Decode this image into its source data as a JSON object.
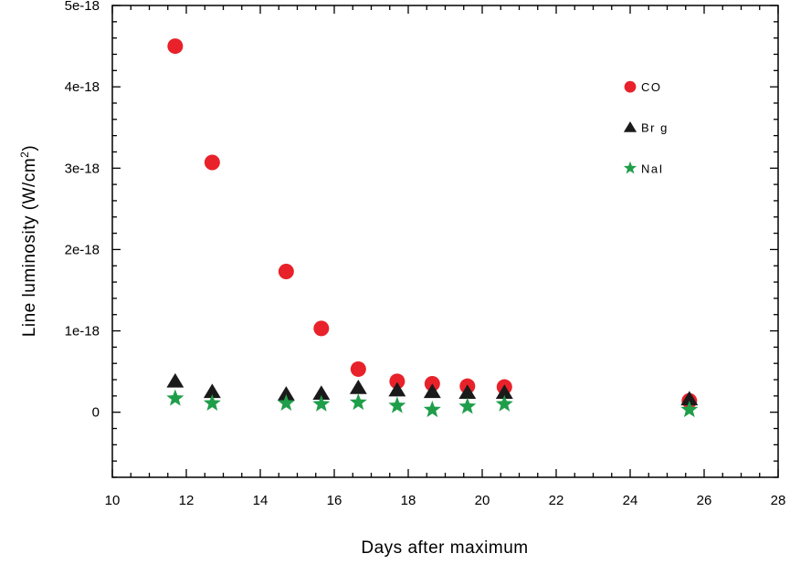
{
  "chart_data": {
    "type": "scatter",
    "xlabel": "Days after maximum",
    "ylabel": {
      "main": "Line luminosity (W/cm",
      "superscript": "2",
      "suffix": ")"
    },
    "xlim": [
      10,
      28
    ],
    "ylim": [
      -0.8,
      5.0
    ],
    "y_unit": "e-18 W/cm^2",
    "x_ticks": [
      "10",
      "12",
      "14",
      "16",
      "18",
      "20",
      "22",
      "24",
      "26",
      "28"
    ],
    "x_tick_values": [
      10,
      12,
      14,
      16,
      18,
      20,
      22,
      24,
      26,
      28
    ],
    "y_ticks": [
      "0",
      "1e-18",
      "2e-18",
      "3e-18",
      "4e-18",
      "5e-18"
    ],
    "y_tick_values": [
      0,
      1,
      2,
      3,
      4,
      5
    ],
    "grid": false,
    "legend_position": "right",
    "series": [
      {
        "name": "CO",
        "marker": "circle",
        "color": "#e8212a",
        "x": [
          11.7,
          12.7,
          14.7,
          15.65,
          16.65,
          17.7,
          18.65,
          19.6,
          20.6,
          25.6
        ],
        "y": [
          4.5,
          3.07,
          1.73,
          1.03,
          0.53,
          0.38,
          0.35,
          0.32,
          0.31,
          0.14
        ]
      },
      {
        "name": "Br g",
        "marker": "triangle",
        "color": "#1a1a1a",
        "x": [
          11.7,
          12.7,
          14.7,
          15.65,
          16.65,
          17.7,
          18.65,
          19.6,
          20.6,
          25.6
        ],
        "y": [
          0.38,
          0.25,
          0.22,
          0.23,
          0.3,
          0.27,
          0.25,
          0.24,
          0.24,
          0.16
        ]
      },
      {
        "name": "NaI",
        "marker": "star",
        "color": "#1f9e4a",
        "x": [
          11.7,
          12.7,
          14.7,
          15.65,
          16.65,
          17.7,
          18.65,
          19.6,
          20.6,
          25.6
        ],
        "y": [
          0.17,
          0.11,
          0.11,
          0.1,
          0.12,
          0.08,
          0.03,
          0.07,
          0.1,
          0.03
        ]
      }
    ]
  }
}
